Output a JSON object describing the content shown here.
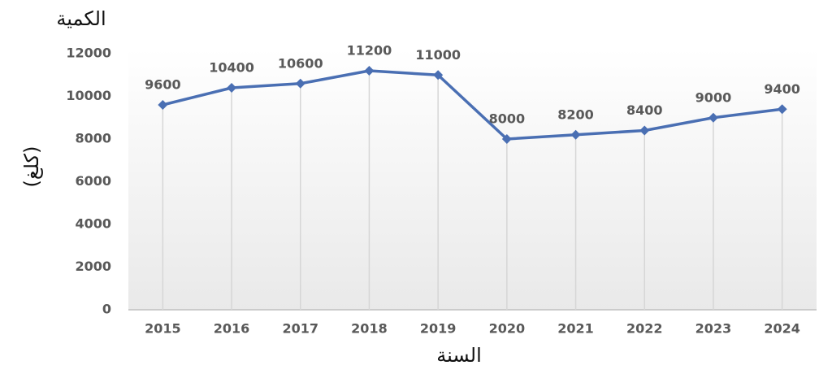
{
  "chart_data": {
    "type": "line",
    "title": "الكمية",
    "y_label": "(كلغ)",
    "x_label": "السنة",
    "categories": [
      "2015",
      "2016",
      "2017",
      "2018",
      "2019",
      "2020",
      "2021",
      "2022",
      "2023",
      "2024"
    ],
    "series": [
      {
        "name": "الكمية",
        "color": "#4a6fb3",
        "values": [
          9600,
          10400,
          10600,
          11200,
          11000,
          8000,
          8200,
          8400,
          9000,
          9400
        ]
      }
    ],
    "ylim": [
      0,
      12000
    ],
    "yticks": [
      0,
      2000,
      4000,
      6000,
      8000,
      10000,
      12000
    ],
    "data_labels": true
  }
}
